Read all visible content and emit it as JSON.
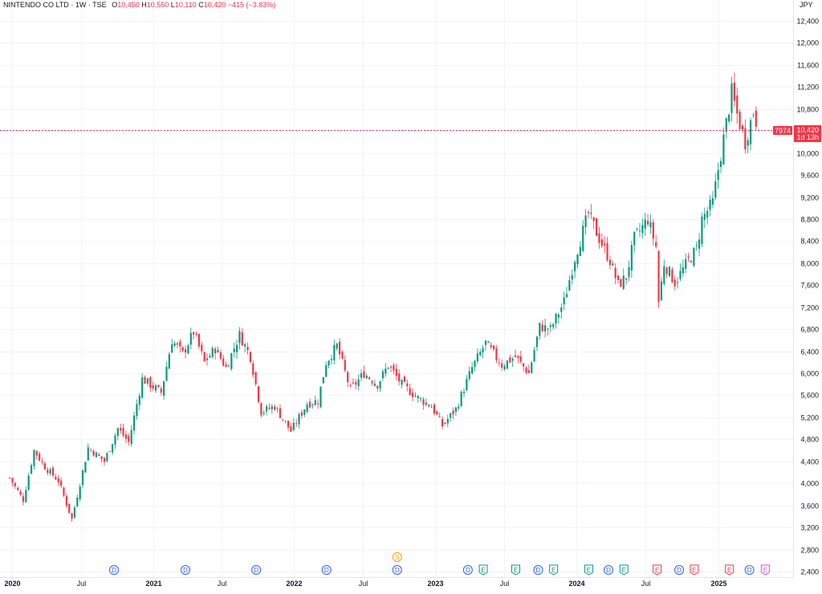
{
  "header": {
    "symbol": "NINTENDO CO LTD · 1W · TSE",
    "open_label": "O",
    "open": "10,450",
    "high_label": "H",
    "high": "10,550",
    "low_label": "L",
    "low": "10,110",
    "close_label": "C",
    "close": "10,420",
    "change": "−415 (−3.83%)"
  },
  "price_axis": {
    "currency": "JPY",
    "last_price": "10,420",
    "countdown": "1d 13h",
    "left_tag": "7974"
  },
  "colors": {
    "up": "#089981",
    "down": "#f23645",
    "grid": "#f0f3fa",
    "price_line": "#f23645",
    "event_dividend": "#2962ff",
    "event_earnings": "#089981",
    "event_split": "#ff9800",
    "event_future": "#e040fb"
  },
  "events": [
    {
      "label": "D",
      "date": "2020-09-25",
      "kind": "dividend"
    },
    {
      "label": "D",
      "date": "2021-03-29",
      "kind": "dividend"
    },
    {
      "label": "D",
      "date": "2021-09-28",
      "kind": "dividend"
    },
    {
      "label": "D",
      "date": "2022-03-29",
      "kind": "dividend"
    },
    {
      "label": "D",
      "date": "2022-09-28",
      "kind": "dividend"
    },
    {
      "label": "S",
      "date": "2022-09-28",
      "kind": "split"
    },
    {
      "label": "D",
      "date": "2023-03-30",
      "kind": "dividend"
    },
    {
      "label": "E",
      "date": "2023-05-09",
      "kind": "earnings"
    },
    {
      "label": "E",
      "date": "2023-08-01",
      "kind": "earnings"
    },
    {
      "label": "D",
      "date": "2023-09-28",
      "kind": "dividend"
    },
    {
      "label": "E",
      "date": "2023-11-07",
      "kind": "earnings"
    },
    {
      "label": "E",
      "date": "2024-02-06",
      "kind": "earnings"
    },
    {
      "label": "D",
      "date": "2024-03-28",
      "kind": "dividend"
    },
    {
      "label": "E",
      "date": "2024-05-07",
      "kind": "earnings"
    },
    {
      "label": "E",
      "date": "2024-08-01",
      "kind": "earnings_neg"
    },
    {
      "label": "D",
      "date": "2024-09-27",
      "kind": "dividend"
    },
    {
      "label": "E",
      "date": "2024-11-05",
      "kind": "earnings_neg"
    },
    {
      "label": "E",
      "date": "2025-02-04",
      "kind": "earnings_neg"
    },
    {
      "label": "D",
      "date": "2025-03-28",
      "kind": "dividend"
    },
    {
      "label": "E",
      "date": "2025-05-08",
      "kind": "future"
    }
  ],
  "chart_data": {
    "type": "candlestick",
    "title": "NINTENDO CO LTD · 1W · TSE",
    "x_axis_ticks": [
      "2020",
      "Jul",
      "2021",
      "Jul",
      "2022",
      "Jul",
      "2023",
      "Jul",
      "2024",
      "Jul",
      "2025"
    ],
    "y_axis_ticks": [
      2400,
      2800,
      3200,
      3600,
      4000,
      4400,
      4800,
      5200,
      5600,
      6000,
      6400,
      6800,
      7200,
      7600,
      8000,
      8400,
      8800,
      9200,
      9600,
      10000,
      10400,
      10800,
      11200,
      11600,
      12000,
      12400
    ],
    "ylim": [
      2400,
      12400
    ],
    "last_close": 10420,
    "grid": true,
    "anchors": [
      {
        "date": "2019-12-30",
        "close": 4100
      },
      {
        "date": "2020-02-03",
        "close": 3700
      },
      {
        "date": "2020-03-02",
        "close": 4600
      },
      {
        "date": "2020-03-30",
        "close": 4300
      },
      {
        "date": "2020-05-04",
        "close": 4050
      },
      {
        "date": "2020-06-08",
        "close": 3350
      },
      {
        "date": "2020-07-20",
        "close": 4650
      },
      {
        "date": "2020-08-31",
        "close": 4400
      },
      {
        "date": "2020-10-05",
        "close": 5000
      },
      {
        "date": "2020-11-02",
        "close": 4750
      },
      {
        "date": "2020-12-07",
        "close": 5900
      },
      {
        "date": "2021-01-25",
        "close": 5650
      },
      {
        "date": "2021-02-22",
        "close": 6600
      },
      {
        "date": "2021-03-22",
        "close": 6350
      },
      {
        "date": "2021-04-19",
        "close": 6750
      },
      {
        "date": "2021-05-17",
        "close": 6200
      },
      {
        "date": "2021-06-14",
        "close": 6450
      },
      {
        "date": "2021-07-12",
        "close": 6100
      },
      {
        "date": "2021-08-16",
        "close": 6700
      },
      {
        "date": "2021-09-13",
        "close": 6300
      },
      {
        "date": "2021-10-11",
        "close": 5300
      },
      {
        "date": "2021-11-15",
        "close": 5400
      },
      {
        "date": "2021-12-27",
        "close": 4950
      },
      {
        "date": "2022-02-07",
        "close": 5450
      },
      {
        "date": "2022-03-07",
        "close": 5500
      },
      {
        "date": "2022-03-28",
        "close": 6200
      },
      {
        "date": "2022-04-25",
        "close": 6500
      },
      {
        "date": "2022-05-30",
        "close": 5700
      },
      {
        "date": "2022-07-04",
        "close": 6000
      },
      {
        "date": "2022-08-08",
        "close": 5800
      },
      {
        "date": "2022-09-05",
        "close": 6150
      },
      {
        "date": "2022-10-10",
        "close": 5800
      },
      {
        "date": "2022-11-21",
        "close": 5550
      },
      {
        "date": "2022-12-26",
        "close": 5400
      },
      {
        "date": "2023-01-23",
        "close": 5050
      },
      {
        "date": "2023-02-27",
        "close": 5350
      },
      {
        "date": "2023-04-10",
        "close": 6100
      },
      {
        "date": "2023-05-15",
        "close": 6550
      },
      {
        "date": "2023-06-26",
        "close": 6150
      },
      {
        "date": "2023-07-31",
        "close": 6300
      },
      {
        "date": "2023-09-04",
        "close": 6000
      },
      {
        "date": "2023-10-02",
        "close": 6850
      },
      {
        "date": "2023-10-30",
        "close": 6800
      },
      {
        "date": "2023-12-04",
        "close": 7300
      },
      {
        "date": "2024-01-01",
        "close": 8100
      },
      {
        "date": "2024-02-05",
        "close": 8900
      },
      {
        "date": "2024-03-04",
        "close": 8450
      },
      {
        "date": "2024-04-01",
        "close": 8050
      },
      {
        "date": "2024-04-22",
        "close": 7600
      },
      {
        "date": "2024-05-13",
        "close": 7750
      },
      {
        "date": "2024-06-03",
        "close": 8450
      },
      {
        "date": "2024-07-08",
        "close": 8800
      },
      {
        "date": "2024-07-29",
        "close": 8300
      },
      {
        "date": "2024-08-05",
        "close": 7300
      },
      {
        "date": "2024-08-19",
        "close": 8000
      },
      {
        "date": "2024-09-16",
        "close": 7650
      },
      {
        "date": "2024-10-21",
        "close": 8050
      },
      {
        "date": "2024-11-11",
        "close": 8250
      },
      {
        "date": "2024-11-25",
        "close": 8800
      },
      {
        "date": "2024-12-23",
        "close": 9100
      },
      {
        "date": "2025-01-06",
        "close": 9700
      },
      {
        "date": "2025-02-10",
        "close": 11100
      },
      {
        "date": "2025-02-24",
        "close": 10700
      },
      {
        "date": "2025-03-17",
        "close": 10200
      },
      {
        "date": "2025-04-07",
        "close": 10750
      },
      {
        "date": "2025-04-21",
        "close": 10420
      }
    ]
  }
}
